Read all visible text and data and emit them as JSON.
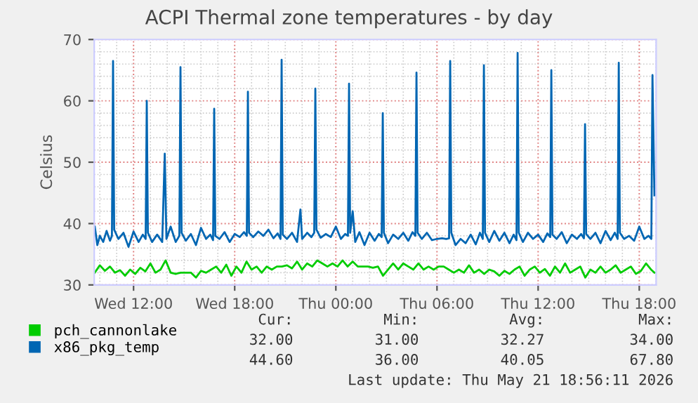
{
  "chart_data": {
    "type": "line",
    "title": "ACPI Thermal zone temperatures - by day",
    "ylabel": "Celsius",
    "xlim": [
      "2026-05-20T09:40",
      "2026-05-21T19:00"
    ],
    "xticks": [
      {
        "value": "2026-05-20T12:00",
        "label": "Wed 12:00"
      },
      {
        "value": "2026-05-20T18:00",
        "label": "Wed 18:00"
      },
      {
        "value": "2026-05-21T00:00",
        "label": "Thu 00:00"
      },
      {
        "value": "2026-05-21T06:00",
        "label": "Thu 06:00"
      },
      {
        "value": "2026-05-21T12:00",
        "label": "Thu 12:00"
      },
      {
        "value": "2026-05-21T18:00",
        "label": "Thu 18:00"
      }
    ],
    "ylim": [
      30,
      70
    ],
    "yticks": [
      30,
      40,
      50,
      60,
      70
    ],
    "grid": true,
    "legend": "bottom left",
    "series": [
      {
        "name": "pch_cannonlake",
        "color": "#00cc00",
        "x": [
          "2026-05-20T09:42",
          "2026-05-20T10:00",
          "2026-05-20T10:18",
          "2026-05-20T10:36",
          "2026-05-20T10:54",
          "2026-05-20T11:12",
          "2026-05-20T11:30",
          "2026-05-20T11:48",
          "2026-05-20T12:06",
          "2026-05-20T12:24",
          "2026-05-20T12:42",
          "2026-05-20T13:00",
          "2026-05-20T13:18",
          "2026-05-20T13:36",
          "2026-05-20T13:54",
          "2026-05-20T14:12",
          "2026-05-20T14:30",
          "2026-05-20T14:48",
          "2026-05-20T15:06",
          "2026-05-20T15:24",
          "2026-05-20T15:42",
          "2026-05-20T16:00",
          "2026-05-20T16:18",
          "2026-05-20T16:36",
          "2026-05-20T16:54",
          "2026-05-20T17:12",
          "2026-05-20T17:30",
          "2026-05-20T17:48",
          "2026-05-20T18:06",
          "2026-05-20T18:24",
          "2026-05-20T18:42",
          "2026-05-20T19:00",
          "2026-05-20T19:18",
          "2026-05-20T19:36",
          "2026-05-20T19:54",
          "2026-05-20T20:12",
          "2026-05-20T20:30",
          "2026-05-20T20:48",
          "2026-05-20T21:06",
          "2026-05-20T21:24",
          "2026-05-20T21:42",
          "2026-05-20T22:00",
          "2026-05-20T22:18",
          "2026-05-20T22:36",
          "2026-05-20T22:54",
          "2026-05-20T23:12",
          "2026-05-20T23:30",
          "2026-05-20T23:48",
          "2026-05-21T00:06",
          "2026-05-21T00:24",
          "2026-05-21T00:42",
          "2026-05-21T01:00",
          "2026-05-21T01:18",
          "2026-05-21T01:36",
          "2026-05-21T01:54",
          "2026-05-21T02:12",
          "2026-05-21T02:30",
          "2026-05-21T02:48",
          "2026-05-21T03:06",
          "2026-05-21T03:24",
          "2026-05-21T03:42",
          "2026-05-21T04:00",
          "2026-05-21T04:18",
          "2026-05-21T04:36",
          "2026-05-21T04:54",
          "2026-05-21T05:12",
          "2026-05-21T05:30",
          "2026-05-21T05:48",
          "2026-05-21T06:06",
          "2026-05-21T06:24",
          "2026-05-21T06:42",
          "2026-05-21T07:00",
          "2026-05-21T07:18",
          "2026-05-21T07:36",
          "2026-05-21T07:54",
          "2026-05-21T08:12",
          "2026-05-21T08:30",
          "2026-05-21T08:48",
          "2026-05-21T09:06",
          "2026-05-21T09:24",
          "2026-05-21T09:42",
          "2026-05-21T10:00",
          "2026-05-21T10:18",
          "2026-05-21T10:36",
          "2026-05-21T10:54",
          "2026-05-21T11:12",
          "2026-05-21T11:30",
          "2026-05-21T11:48",
          "2026-05-21T12:06",
          "2026-05-21T12:24",
          "2026-05-21T12:42",
          "2026-05-21T13:00",
          "2026-05-21T13:18",
          "2026-05-21T13:36",
          "2026-05-21T13:54",
          "2026-05-21T14:12",
          "2026-05-21T14:30",
          "2026-05-21T14:48",
          "2026-05-21T15:06",
          "2026-05-21T15:24",
          "2026-05-21T15:42",
          "2026-05-21T16:00",
          "2026-05-21T16:18",
          "2026-05-21T16:36",
          "2026-05-21T16:54",
          "2026-05-21T17:12",
          "2026-05-21T17:30",
          "2026-05-21T17:48",
          "2026-05-21T18:06",
          "2026-05-21T18:24",
          "2026-05-21T18:42",
          "2026-05-21T18:54"
        ],
        "values": [
          32,
          33.2,
          32.3,
          33,
          32,
          32.4,
          31.5,
          32.5,
          31.8,
          32.8,
          32.2,
          33.5,
          32,
          32.5,
          34,
          32,
          31.8,
          32,
          32,
          32,
          31.2,
          32.3,
          32,
          32.5,
          33,
          32,
          33.3,
          31.5,
          33,
          32,
          33.8,
          32.5,
          33,
          32,
          33,
          32.5,
          33,
          33,
          33.2,
          32.7,
          33.8,
          32.5,
          33.5,
          33,
          34,
          33.5,
          33,
          33.5,
          33,
          34,
          33,
          33.8,
          33,
          33,
          33,
          32.8,
          33,
          31.5,
          32.5,
          33.5,
          32.5,
          33.5,
          33,
          32.5,
          33.5,
          32.5,
          33,
          32.5,
          33,
          33,
          32.5,
          32,
          32.5,
          32,
          33.2,
          32,
          32.5,
          31.8,
          32.5,
          32.2,
          31.5,
          32.3,
          31.8,
          32.5,
          33,
          31.5,
          32.5,
          33,
          32,
          32.6,
          31.5,
          33,
          32,
          33.5,
          32,
          32.5,
          33,
          31.2,
          32.5,
          32,
          33,
          32,
          32.5,
          33.2,
          32,
          32.5,
          33,
          31.8,
          32.3,
          33.5,
          32.5,
          32
        ]
      },
      {
        "name": "x86_pkg_temp",
        "color": "#0066b3",
        "x": [
          "2026-05-20T09:42",
          "2026-05-20T09:51",
          "2026-05-20T10:00",
          "2026-05-20T10:12",
          "2026-05-20T10:24",
          "2026-05-20T10:36",
          "2026-05-20T10:43",
          "2026-05-20T10:47",
          "2026-05-20T10:51",
          "2026-05-20T11:06",
          "2026-05-20T11:24",
          "2026-05-20T11:42",
          "2026-05-20T12:00",
          "2026-05-20T12:18",
          "2026-05-20T12:33",
          "2026-05-20T12:43",
          "2026-05-20T12:47",
          "2026-05-20T12:51",
          "2026-05-20T13:06",
          "2026-05-20T13:24",
          "2026-05-20T13:42",
          "2026-05-20T13:51",
          "2026-05-20T13:57",
          "2026-05-20T14:12",
          "2026-05-20T14:30",
          "2026-05-20T14:43",
          "2026-05-20T14:47",
          "2026-05-20T14:51",
          "2026-05-20T15:06",
          "2026-05-20T15:24",
          "2026-05-20T15:42",
          "2026-05-20T16:00",
          "2026-05-20T16:18",
          "2026-05-20T16:33",
          "2026-05-20T16:43",
          "2026-05-20T16:47",
          "2026-05-20T16:51",
          "2026-05-20T17:06",
          "2026-05-20T17:24",
          "2026-05-20T17:42",
          "2026-05-20T18:00",
          "2026-05-20T18:18",
          "2026-05-20T18:33",
          "2026-05-20T18:43",
          "2026-05-20T18:47",
          "2026-05-20T18:51",
          "2026-05-20T19:06",
          "2026-05-20T19:24",
          "2026-05-20T19:42",
          "2026-05-20T20:00",
          "2026-05-20T20:18",
          "2026-05-20T20:33",
          "2026-05-20T20:43",
          "2026-05-20T20:47",
          "2026-05-20T20:51",
          "2026-05-20T21:06",
          "2026-05-20T21:24",
          "2026-05-20T21:42",
          "2026-05-20T21:54",
          "2026-05-20T22:00",
          "2026-05-20T22:18",
          "2026-05-20T22:33",
          "2026-05-20T22:43",
          "2026-05-20T22:47",
          "2026-05-20T22:51",
          "2026-05-20T23:06",
          "2026-05-20T23:24",
          "2026-05-20T23:42",
          "2026-05-21T00:00",
          "2026-05-21T00:18",
          "2026-05-21T00:33",
          "2026-05-21T00:43",
          "2026-05-21T00:47",
          "2026-05-21T00:51",
          "2026-05-21T01:00",
          "2026-05-21T01:09",
          "2026-05-21T01:24",
          "2026-05-21T01:42",
          "2026-05-21T02:00",
          "2026-05-21T02:18",
          "2026-05-21T02:33",
          "2026-05-21T02:43",
          "2026-05-21T02:47",
          "2026-05-21T02:51",
          "2026-05-21T03:06",
          "2026-05-21T03:24",
          "2026-05-21T03:42",
          "2026-05-21T04:00",
          "2026-05-21T04:18",
          "2026-05-21T04:33",
          "2026-05-21T04:43",
          "2026-05-21T04:47",
          "2026-05-21T04:51",
          "2026-05-21T05:06",
          "2026-05-21T05:24",
          "2026-05-21T05:42",
          "2026-05-21T06:00",
          "2026-05-21T06:18",
          "2026-05-21T06:33",
          "2026-05-21T06:43",
          "2026-05-21T06:47",
          "2026-05-21T06:51",
          "2026-05-21T07:06",
          "2026-05-21T07:24",
          "2026-05-21T07:42",
          "2026-05-21T08:00",
          "2026-05-21T08:18",
          "2026-05-21T08:33",
          "2026-05-21T08:43",
          "2026-05-21T08:47",
          "2026-05-21T08:51",
          "2026-05-21T09:06",
          "2026-05-21T09:24",
          "2026-05-21T09:42",
          "2026-05-21T10:00",
          "2026-05-21T10:18",
          "2026-05-21T10:33",
          "2026-05-21T10:43",
          "2026-05-21T10:47",
          "2026-05-21T10:51",
          "2026-05-21T11:06",
          "2026-05-21T11:24",
          "2026-05-21T11:42",
          "2026-05-21T12:00",
          "2026-05-21T12:18",
          "2026-05-21T12:33",
          "2026-05-21T12:43",
          "2026-05-21T12:47",
          "2026-05-21T12:51",
          "2026-05-21T13:06",
          "2026-05-21T13:24",
          "2026-05-21T13:42",
          "2026-05-21T14:00",
          "2026-05-21T14:18",
          "2026-05-21T14:33",
          "2026-05-21T14:43",
          "2026-05-21T14:47",
          "2026-05-21T14:51",
          "2026-05-21T15:06",
          "2026-05-21T15:24",
          "2026-05-21T15:42",
          "2026-05-21T16:00",
          "2026-05-21T16:18",
          "2026-05-21T16:33",
          "2026-05-21T16:43",
          "2026-05-21T16:47",
          "2026-05-21T16:51",
          "2026-05-21T17:06",
          "2026-05-21T17:24",
          "2026-05-21T17:42",
          "2026-05-21T18:00",
          "2026-05-21T18:18",
          "2026-05-21T18:33",
          "2026-05-21T18:43",
          "2026-05-21T18:47",
          "2026-05-21T18:54"
        ],
        "values": [
          39.5,
          36.5,
          38,
          37,
          38.8,
          37.2,
          38,
          66.5,
          39,
          37.5,
          38.5,
          36.2,
          38.7,
          37,
          38.2,
          37.5,
          60,
          38.5,
          37,
          38.2,
          37,
          51.4,
          37.5,
          39.5,
          37,
          38,
          65.5,
          38.5,
          37.2,
          38.3,
          36.5,
          39.3,
          37.5,
          38.2,
          37.3,
          58.7,
          38,
          37.5,
          38.6,
          37,
          38.3,
          37.8,
          38.6,
          38,
          61.5,
          38.5,
          37.8,
          38.7,
          38,
          39,
          37.6,
          38.4,
          37.5,
          66.7,
          38.2,
          37.5,
          38.5,
          37,
          42.3,
          37.5,
          38.5,
          37.8,
          38.5,
          62,
          39,
          37.7,
          38.3,
          37.8,
          39.5,
          37.5,
          38.3,
          38,
          62.8,
          38.5,
          42,
          37,
          38.6,
          36.5,
          38.5,
          37.2,
          38.3,
          37.8,
          58,
          38.5,
          36.8,
          38.2,
          37.5,
          38.5,
          37.2,
          38.6,
          38,
          64.6,
          38.5,
          37.5,
          38.5,
          37.3,
          37.5,
          37.6,
          37.5,
          37.6,
          66.5,
          38.5,
          36.5,
          37.5,
          36.8,
          38.2,
          36.6,
          38.5,
          37.5,
          65.8,
          38.5,
          37,
          38.8,
          37.2,
          38.5,
          36.8,
          38.2,
          37.3,
          67.8,
          38.5,
          37,
          38.5,
          37.5,
          38.2,
          37,
          38.4,
          37.8,
          65,
          38.2,
          37.5,
          38.6,
          36.8,
          38.2,
          37.5,
          38.3,
          37.6,
          56.2,
          38.3,
          37.5,
          38.5,
          36.8,
          38.8,
          37.3,
          38.5,
          37.5,
          66.2,
          38.5,
          37.5,
          38,
          37.2,
          39.5,
          37.5,
          38,
          37.5,
          64.2,
          44.6
        ]
      }
    ],
    "annotations": [
      "Cur:",
      "Min:",
      "Avg:",
      "Max:",
      "32.00",
      "31.00",
      "32.27",
      "34.00",
      "44.60",
      "36.00",
      "40.05",
      "67.80",
      "Last update: Thu May 21 18:56:11 2026"
    ]
  }
}
